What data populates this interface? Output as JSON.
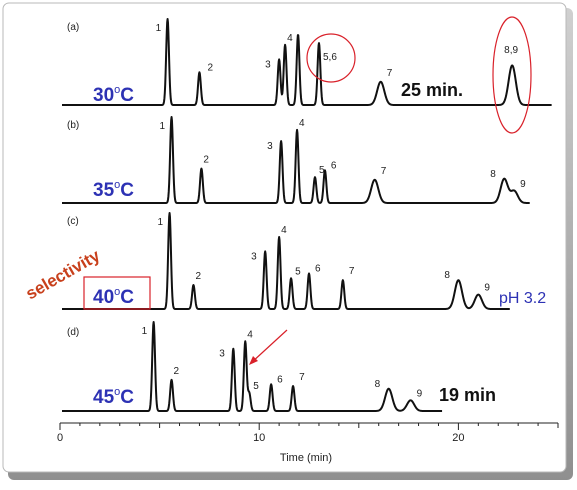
{
  "chart_data": {
    "type": "line",
    "xlabel": "Time (min)",
    "xlim": [
      0,
      25
    ],
    "xticks": [
      0,
      10,
      20
    ],
    "panels": [
      {
        "id": "a",
        "panel_label": "(a)",
        "temperature_base": "30",
        "temperature_sup": "o",
        "temperature_unit": "C",
        "side_note": "25 min.",
        "peaks": [
          {
            "label": "1",
            "time": 5.4,
            "height": 1.0
          },
          {
            "label": "2",
            "time": 7.0,
            "height": 0.38
          },
          {
            "label": "3",
            "time": 11.0,
            "height": 0.53
          },
          {
            "label": "4",
            "time": 11.3,
            "height": 0.7
          },
          {
            "label": "",
            "time": 11.95,
            "height": 0.82
          },
          {
            "label": "",
            "time": 13.0,
            "height": 0.72
          },
          {
            "label": "7",
            "time": 16.1,
            "height": 0.27
          },
          {
            "label": "8,9",
            "time": 22.7,
            "height": 0.46
          }
        ],
        "annotations": [
          "5,6"
        ],
        "trace_end": 24.7
      },
      {
        "id": "b",
        "panel_label": "(b)",
        "temperature_base": "35",
        "temperature_sup": "o",
        "temperature_unit": "C",
        "peaks": [
          {
            "label": "1",
            "time": 5.6,
            "height": 1.0
          },
          {
            "label": "2",
            "time": 7.1,
            "height": 0.4
          },
          {
            "label": "3",
            "time": 11.1,
            "height": 0.72
          },
          {
            "label": "4",
            "time": 11.9,
            "height": 0.85
          },
          {
            "label": "5",
            "time": 12.8,
            "height": 0.3
          },
          {
            "label": "6",
            "time": 13.3,
            "height": 0.38
          },
          {
            "label": "7",
            "time": 15.8,
            "height": 0.27
          },
          {
            "label": "8",
            "time": 22.3,
            "height": 0.28
          },
          {
            "label": "9",
            "time": 22.8,
            "height": 0.14
          }
        ],
        "trace_end": 23.6
      },
      {
        "id": "c",
        "panel_label": "(c)",
        "temperature_base": "40",
        "temperature_sup": "o",
        "temperature_unit": "C",
        "side_note": "pH 3.2",
        "peaks": [
          {
            "label": "1",
            "time": 5.5,
            "height": 1.0
          },
          {
            "label": "2",
            "time": 6.7,
            "height": 0.25
          },
          {
            "label": "3",
            "time": 10.3,
            "height": 0.6
          },
          {
            "label": "4",
            "time": 11.0,
            "height": 0.75
          },
          {
            "label": "5",
            "time": 11.6,
            "height": 0.32
          },
          {
            "label": "6",
            "time": 12.5,
            "height": 0.37
          },
          {
            "label": "7",
            "time": 14.2,
            "height": 0.3
          },
          {
            "label": "8",
            "time": 20.0,
            "height": 0.3
          },
          {
            "label": "9",
            "time": 21.0,
            "height": 0.15
          }
        ],
        "trace_end": 22.6
      },
      {
        "id": "d",
        "panel_label": "(d)",
        "temperature_base": "45",
        "temperature_sup": "o",
        "temperature_unit": "C",
        "side_note": "19 min",
        "peaks": [
          {
            "label": "1",
            "time": 4.7,
            "height": 1.0
          },
          {
            "label": "2",
            "time": 5.6,
            "height": 0.35
          },
          {
            "label": "3",
            "time": 8.7,
            "height": 0.7
          },
          {
            "label": "4",
            "time": 9.3,
            "height": 0.78
          },
          {
            "label": "5",
            "time": 9.5,
            "height": 0.2
          },
          {
            "label": "6",
            "time": 10.6,
            "height": 0.3
          },
          {
            "label": "7",
            "time": 11.7,
            "height": 0.28
          },
          {
            "label": "8",
            "time": 16.5,
            "height": 0.25
          },
          {
            "label": "9",
            "time": 17.6,
            "height": 0.12
          }
        ],
        "trace_end": 19.2
      }
    ]
  },
  "side_label": "selectivity",
  "colors": {
    "trace": "#111111",
    "temperature_text": "#2d32b4",
    "ph_text": "#2d32b4",
    "highlight": "#d9212a",
    "selectivity_text": "#c8401c",
    "frame_shadow": "#8a8a8a"
  }
}
